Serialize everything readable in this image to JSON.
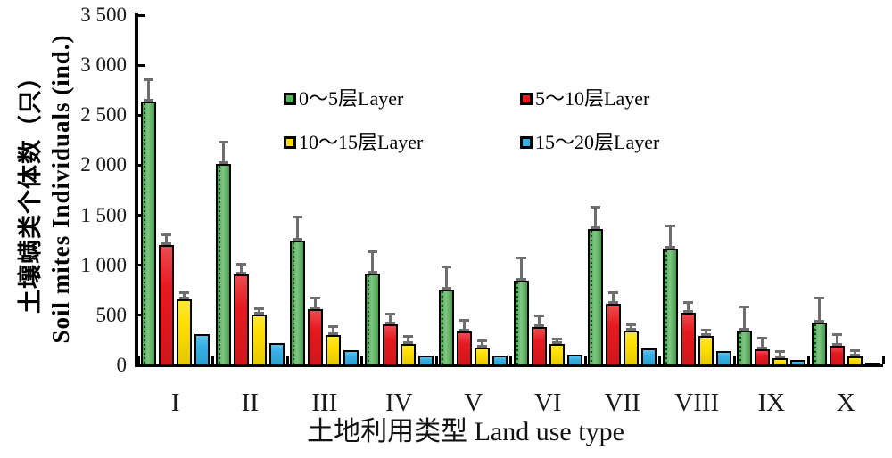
{
  "chart_data": {
    "type": "bar",
    "title": "",
    "xlabel": "土地利用类型 Land use type",
    "ylabel_cn": "土壤螨类个体数（只）",
    "ylabel_en": "Soil mites Individuals (ind.)",
    "categories": [
      "I",
      "II",
      "III",
      "IV",
      "V",
      "VI",
      "VII",
      "VIII",
      "IX",
      "X"
    ],
    "ylim": [
      0,
      3500
    ],
    "ytick_step": 500,
    "ytick_labels": [
      "0",
      "500",
      "1 000",
      "1 500",
      "2 000",
      "2 500",
      "3 000",
      "3 500"
    ],
    "grid": false,
    "legend_position": "top-inside",
    "error_bars": "upper, shown for layers 0-5, 5-10 and 10-15",
    "series": [
      {
        "name": "0～5层Layer",
        "color": "#53b559",
        "values": [
          2640,
          2010,
          1250,
          915,
          760,
          845,
          1365,
          1165,
          345,
          430
        ],
        "errors": [
          215,
          225,
          230,
          220,
          225,
          225,
          220,
          230,
          235,
          245
        ]
      },
      {
        "name": "5～10层Layer",
        "color": "#e6191e",
        "values": [
          1200,
          910,
          560,
          410,
          335,
          380,
          615,
          525,
          160,
          200
        ],
        "errors": [
          105,
          100,
          115,
          105,
          115,
          110,
          115,
          105,
          115,
          110
        ]
      },
      {
        "name": "10～15层Layer",
        "color": "#ffdf00",
        "values": [
          660,
          510,
          305,
          215,
          180,
          210,
          345,
          290,
          70,
          90
        ],
        "errors": [
          70,
          55,
          80,
          70,
          65,
          55,
          60,
          60,
          70,
          60
        ]
      },
      {
        "name": "15～20层Layer",
        "color": "#35b0e6",
        "values": [
          310,
          225,
          155,
          100,
          95,
          105,
          165,
          140,
          50,
          25
        ],
        "errors": [
          0,
          0,
          0,
          0,
          0,
          0,
          0,
          0,
          0,
          0
        ]
      }
    ],
    "colors": {
      "axis": "#000000",
      "error_bar": "#6e6e6e",
      "text": "#1a1a1a"
    }
  }
}
